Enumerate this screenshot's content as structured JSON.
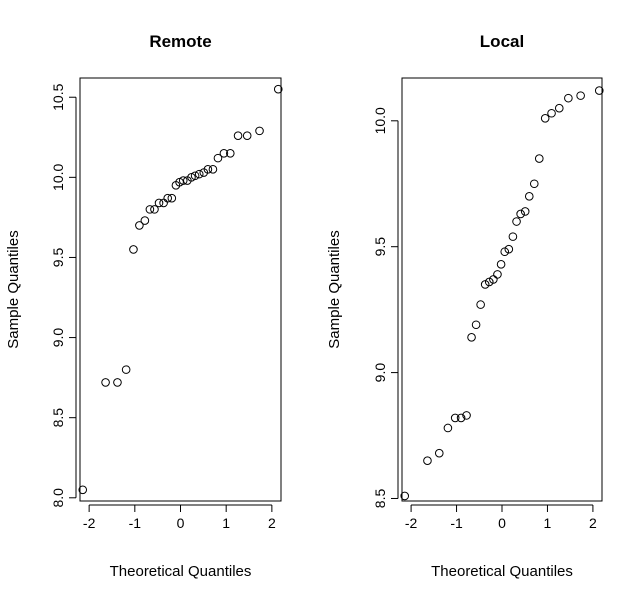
{
  "chart_data": [
    {
      "type": "scatter",
      "title": "Remote",
      "xlabel": "Theoretical Quantiles",
      "ylabel": "Sample Quantiles",
      "xlim": [
        -2.2,
        2.2
      ],
      "ylim": [
        7.98,
        10.62
      ],
      "xticks": [
        -2,
        -1,
        0,
        1,
        2
      ],
      "xtick_labels": [
        "-2",
        "-1",
        "0",
        "1",
        "2"
      ],
      "yticks": [
        8.0,
        8.5,
        9.0,
        9.5,
        10.0,
        10.5
      ],
      "ytick_labels": [
        "8.0",
        "8.5",
        "9.0",
        "9.5",
        "10.0",
        "10.5"
      ],
      "grid": false,
      "marker": "open-circle",
      "series": [
        {
          "x": [
            -2.14,
            -1.64,
            -1.38,
            -1.19,
            -1.03,
            -0.9,
            -0.78,
            -0.67,
            -0.57,
            -0.47,
            -0.37,
            -0.28,
            -0.19,
            -0.1,
            -0.02,
            0.06,
            0.15,
            0.24,
            0.32,
            0.41,
            0.51,
            0.6,
            0.71,
            0.82,
            0.95,
            1.09,
            1.26,
            1.46,
            1.73,
            2.14
          ],
          "y": [
            8.05,
            8.72,
            8.72,
            8.8,
            9.55,
            9.7,
            9.73,
            9.8,
            9.8,
            9.84,
            9.84,
            9.87,
            9.87,
            9.95,
            9.97,
            9.98,
            9.98,
            10.0,
            10.01,
            10.02,
            10.03,
            10.05,
            10.05,
            10.12,
            10.15,
            10.15,
            10.26,
            10.26,
            10.29,
            10.55
          ]
        }
      ]
    },
    {
      "type": "scatter",
      "title": "Local",
      "xlabel": "Theoretical Quantiles",
      "ylabel": "Sample Quantiles",
      "xlim": [
        -2.2,
        2.2
      ],
      "ylim": [
        8.49,
        10.17
      ],
      "xticks": [
        -2,
        -1,
        0,
        1,
        2
      ],
      "xtick_labels": [
        "-2",
        "-1",
        "0",
        "1",
        "2"
      ],
      "yticks": [
        8.5,
        9.0,
        9.5,
        10.0
      ],
      "ytick_labels": [
        "8.5",
        "9.0",
        "9.5",
        "10.0"
      ],
      "grid": false,
      "marker": "open-circle",
      "series": [
        {
          "x": [
            -2.14,
            -1.64,
            -1.38,
            -1.19,
            -1.03,
            -0.9,
            -0.78,
            -0.67,
            -0.57,
            -0.47,
            -0.37,
            -0.28,
            -0.19,
            -0.1,
            -0.02,
            0.06,
            0.15,
            0.24,
            0.32,
            0.41,
            0.51,
            0.6,
            0.71,
            0.82,
            0.95,
            1.09,
            1.26,
            1.46,
            1.73,
            2.14
          ],
          "y": [
            8.51,
            8.65,
            8.68,
            8.78,
            8.82,
            8.82,
            8.83,
            9.14,
            9.19,
            9.27,
            9.35,
            9.36,
            9.37,
            9.39,
            9.43,
            9.48,
            9.49,
            9.54,
            9.6,
            9.63,
            9.64,
            9.7,
            9.75,
            9.85,
            10.01,
            10.03,
            10.05,
            10.09,
            10.1,
            10.12
          ]
        }
      ]
    }
  ]
}
